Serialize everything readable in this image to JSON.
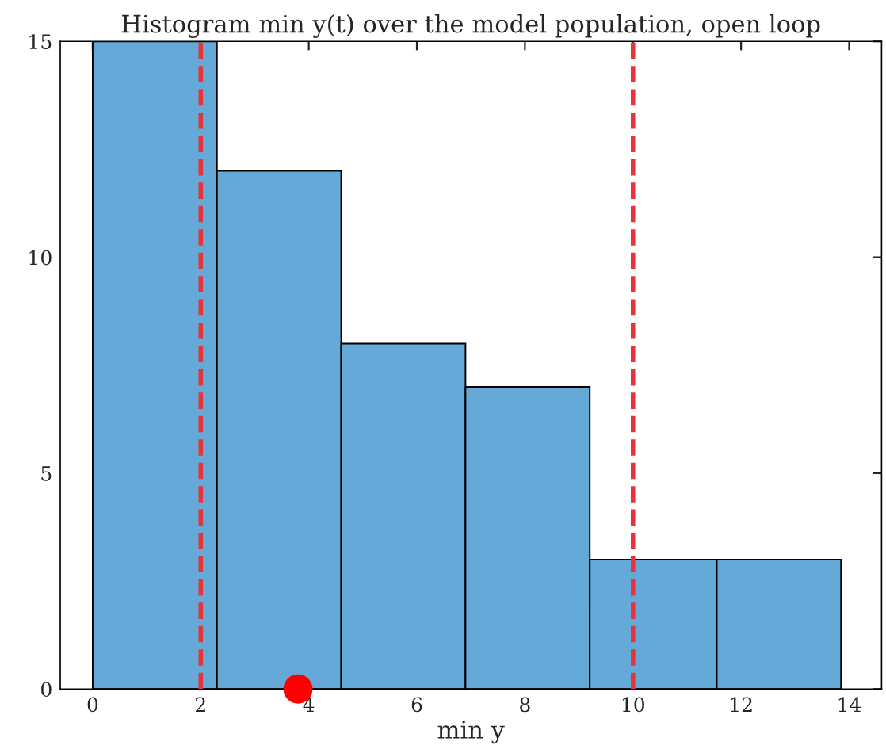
{
  "chart_data": {
    "type": "histogram",
    "title": "Histogram min y(t) over the model population, open loop",
    "xlabel": "min y",
    "bins": [
      0,
      2.3,
      4.6,
      6.9,
      9.2,
      11.55,
      13.85
    ],
    "values": [
      15,
      12,
      8,
      7,
      3,
      3
    ],
    "color": "#64a9d8",
    "series": [
      {
        "type": "scatter",
        "x": [
          3.8
        ],
        "values": [
          0
        ],
        "color": "#ff0000",
        "marker": "circle"
      }
    ],
    "ref_lines": [
      {
        "axis": "x",
        "value": 2,
        "color": "#e8333a",
        "line_style": "dashed"
      },
      {
        "axis": "x",
        "value": 10,
        "color": "#e8333a",
        "line_style": "dashed"
      }
    ],
    "xlim": [
      -0.6,
      14.6
    ],
    "xticks": [
      0,
      2,
      4,
      6,
      8,
      10,
      12,
      14
    ],
    "ylim": [
      0,
      15
    ],
    "yticks": [
      0,
      5,
      10,
      15
    ],
    "grid": false
  }
}
